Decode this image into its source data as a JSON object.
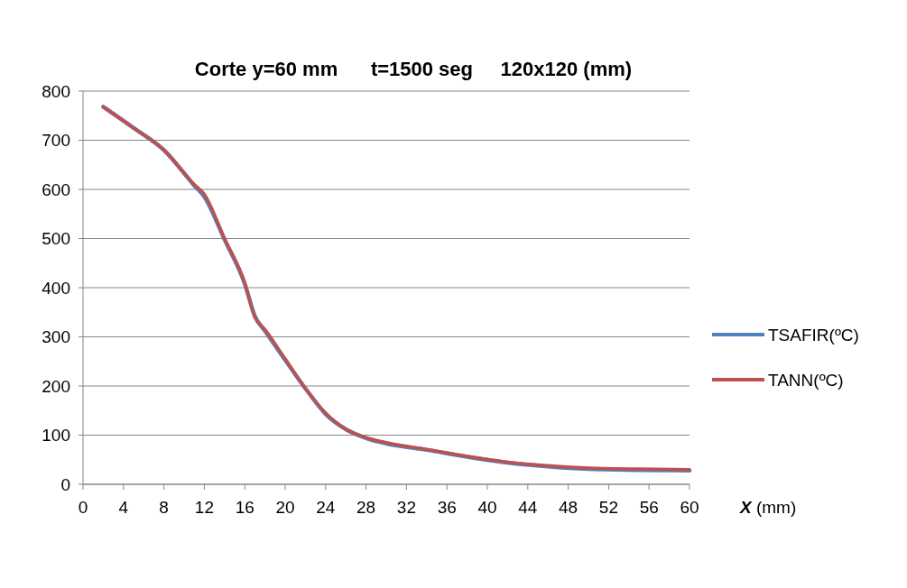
{
  "chart_data": {
    "type": "line",
    "title": "Corte y=60 mm      t=1500 seg     120x120 (mm)",
    "xlabel": "X (mm)",
    "x": [
      2,
      5,
      8,
      11,
      12,
      14,
      16,
      17,
      18,
      20,
      22,
      24,
      26,
      28,
      30,
      34,
      38,
      42,
      46,
      50,
      55,
      60
    ],
    "series": [
      {
        "name": "TSAFIR(ºC)",
        "color": "#4f81bd",
        "values": [
          768,
          725,
          680,
          608,
          585,
          498,
          408,
          342,
          312,
          253,
          195,
          143,
          112,
          94,
          83,
          70,
          56,
          44,
          36,
          31,
          29,
          28
        ]
      },
      {
        "name": "TANN(ºC)",
        "color": "#c0504d",
        "values": [
          768,
          725,
          680,
          610,
          590,
          500,
          410,
          340,
          315,
          255,
          195,
          145,
          112,
          95,
          85,
          71,
          57,
          45,
          38,
          33,
          31,
          30
        ]
      }
    ],
    "xlim": [
      0,
      60
    ],
    "xticks": [
      0,
      4,
      8,
      12,
      16,
      20,
      24,
      28,
      32,
      36,
      40,
      44,
      48,
      52,
      56,
      60
    ],
    "ylim": [
      0,
      800
    ],
    "yticks": [
      0,
      100,
      200,
      300,
      400,
      500,
      600,
      700,
      800
    ],
    "grid": "y",
    "legend": "right",
    "marker": "none",
    "line_style": "solid"
  }
}
